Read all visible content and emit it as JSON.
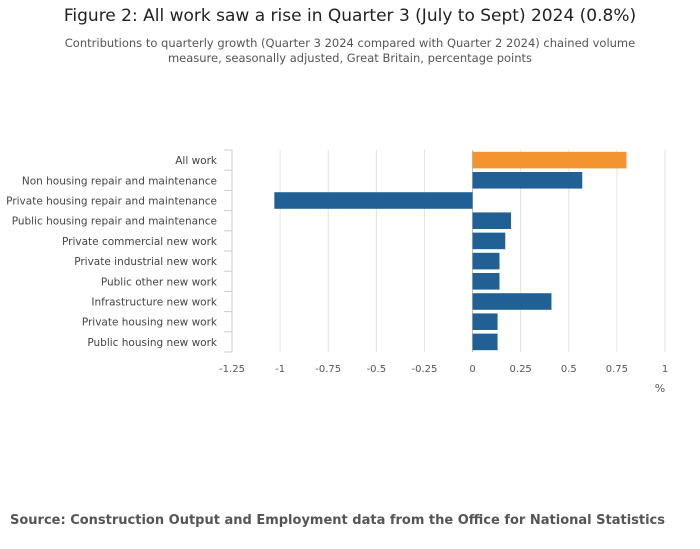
{
  "chart_data": {
    "type": "bar",
    "orientation": "horizontal",
    "title": "Figure 2: All work saw a rise in Quarter 3 (July to Sept) 2024 (0.8%)",
    "subtitle": "Contributions to quarterly growth (Quarter 3 2024 compared with Quarter 2 2024) chained volume measure, seasonally adjusted, Great Britain, percentage points",
    "categories": [
      "All work",
      "Non housing repair and maintenance",
      "Private housing repair and maintenance",
      "Public housing repair and maintenance",
      "Private commercial new work",
      "Private industrial new work",
      "Public other new work",
      "Infrastructure new work",
      "Private housing new work",
      "Public housing new work"
    ],
    "values": [
      0.8,
      0.57,
      -1.03,
      0.2,
      0.17,
      0.14,
      0.14,
      0.41,
      0.13,
      0.13
    ],
    "bar_colors": [
      "#f39431",
      "#206095",
      "#206095",
      "#206095",
      "#206095",
      "#206095",
      "#206095",
      "#206095",
      "#206095",
      "#206095"
    ],
    "xlim": [
      -1.25,
      1
    ],
    "xticks": [
      -1.25,
      -1,
      -0.75,
      -0.5,
      -0.25,
      0,
      0.25,
      0.5,
      0.75,
      1
    ],
    "xtick_labels": [
      "-1.25",
      "-1",
      "-0.75",
      "-0.5",
      "-0.25",
      "0",
      "0.25",
      "0.5",
      "0.75",
      "1"
    ],
    "xlabel": "%",
    "ylabel": "",
    "grid": true
  },
  "source": "Source: Construction Output and Employment data from the Office for National Statistics"
}
